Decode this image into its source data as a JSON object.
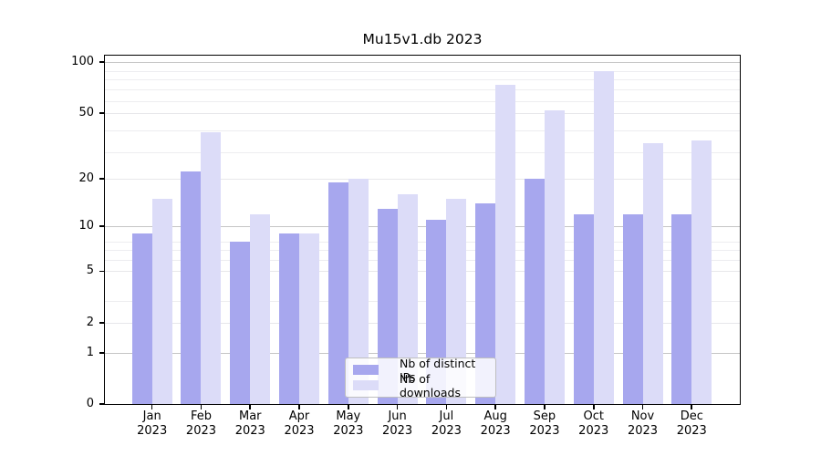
{
  "title": "Mu15v1.db 2023",
  "chart_data": {
    "type": "bar",
    "title": "Mu15v1.db 2023",
    "categories": [
      "Jan",
      "Feb",
      "Mar",
      "Apr",
      "May",
      "Jun",
      "Jul",
      "Aug",
      "Sep",
      "Oct",
      "Nov",
      "Dec"
    ],
    "year": "2023",
    "series": [
      {
        "name": "Nb of distinct IPs",
        "color": "#a7a7ee",
        "values": [
          9,
          22,
          8,
          9,
          19,
          13,
          11,
          14,
          20,
          12,
          12,
          12
        ]
      },
      {
        "name": "Nb of downloads",
        "color": "#dcdcf8",
        "values": [
          15,
          38,
          12,
          9,
          20,
          16,
          15,
          73,
          52,
          88,
          33,
          34
        ]
      }
    ],
    "yscale": "log1p",
    "ylim": [
      0,
      109.4
    ],
    "yticks": [
      100,
      50,
      20,
      10,
      5,
      2,
      1,
      0
    ],
    "strong_gridlines": [
      100,
      10,
      1
    ],
    "light_gridlines": [
      50,
      20,
      5,
      2
    ],
    "minor_gridlines_log1p": [
      4,
      6,
      7,
      8,
      9,
      30,
      40,
      60,
      70,
      80,
      90
    ],
    "grid": true,
    "legend_position": "bottom-center",
    "xlabel": "",
    "ylabel": ""
  }
}
